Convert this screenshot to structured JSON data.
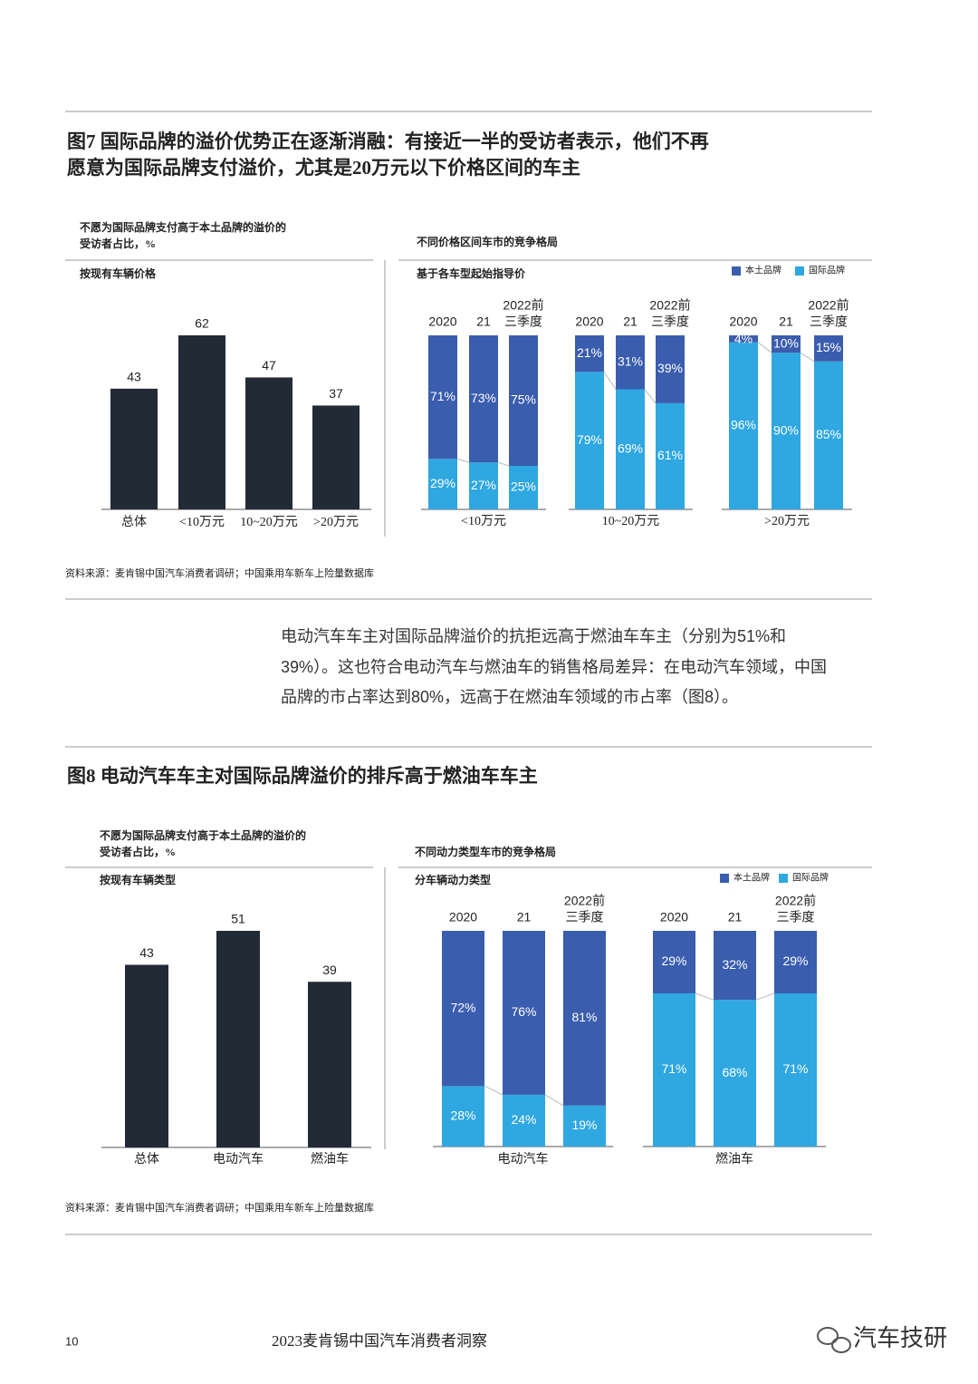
{
  "figure7": {
    "title_lines": [
      "图7 国际品牌的溢价优势正在逐渐消融：有接近一半的受访者表示，他们不再",
      "愿意为国际品牌支付溢价，尤其是20万元以下价格区间的车主"
    ],
    "source": "资料来源：麦肯锡中国汽车消费者调研；中国乘用车新车上险量数据库"
  },
  "paragraph": {
    "lines": [
      "电动汽车车主对国际品牌溢价的抗拒远高于燃油车车主（分别为51%和",
      "39%）。这也符合电动汽车与燃油车的销售格局差异：在电动汽车领域，中国",
      "品牌的市占率达到80%，远高于在燃油车领域的市占率（图8）。"
    ]
  },
  "figure8": {
    "title_lines": [
      "图8 电动汽车车主对国际品牌溢价的排斥高于燃油车车主"
    ],
    "source": "资料来源：麦肯锡中国汽车消费者调研；中国乘用车新车上险量数据库"
  },
  "footer": {
    "page_number": "10",
    "publication": "2023麦肯锡中国汽车消费者洞察",
    "watermark": "汽车技研"
  },
  "chart_data": [
    {
      "type": "bar",
      "title": [
        "不愿为国际品牌支付高于本土品牌的溢价的",
        "受访者占比，%"
      ],
      "subtitle": "按现有车辆价格",
      "categories": [
        "总体",
        "<10万元",
        "10~20万元",
        ">20万元"
      ],
      "values": [
        43,
        62,
        47,
        37
      ],
      "color": "#222a35"
    },
    {
      "type": "stacked_bar",
      "title": [
        "不同价格区间车市的竞争格局"
      ],
      "subtitle": "基于各车型起始指导价",
      "groups": [
        "<10万元",
        "10~20万元",
        ">20万元"
      ],
      "periods": [
        [
          "2020"
        ],
        [
          "21"
        ],
        [
          "2022前",
          "三季度"
        ]
      ],
      "series": [
        {
          "name": "国际品牌",
          "color": "#2fa7e0",
          "values": [
            29,
            27,
            25,
            79,
            69,
            61,
            96,
            90,
            85
          ],
          "value_labels": [
            "29%",
            "27%",
            "25%",
            "79%",
            "69%",
            "61%",
            "96%",
            "90%",
            "85%"
          ]
        },
        {
          "name": "本土品牌",
          "color": "#3a5dae",
          "values": [
            71,
            73,
            75,
            21,
            31,
            39,
            4,
            10,
            15
          ],
          "value_labels": [
            "71%",
            "73%",
            "75%",
            "21%",
            "31%",
            "39%",
            "4%",
            "10%",
            "15%"
          ]
        }
      ]
    },
    {
      "type": "bar",
      "title": [
        "不愿为国际品牌支付高于本土品牌的溢价的",
        "受访者占比，%"
      ],
      "subtitle": "按现有车辆类型",
      "categories": [
        "总体",
        "电动汽车",
        "燃油车"
      ],
      "values": [
        43,
        51,
        39
      ],
      "color": "#222a35"
    },
    {
      "type": "stacked_bar",
      "title": [
        "不同动力类型车市的竞争格局"
      ],
      "subtitle": "分车辆动力类型",
      "groups": [
        "电动汽车",
        "燃油车"
      ],
      "periods": [
        [
          "2020"
        ],
        [
          "21"
        ],
        [
          "2022前",
          "三季度"
        ]
      ],
      "series": [
        {
          "name": "国际品牌",
          "color": "#2fa7e0",
          "values": [
            28,
            24,
            19,
            71,
            68,
            71
          ],
          "value_labels": [
            "28%",
            "24%",
            "19%",
            "71%",
            "68%",
            "71%"
          ]
        },
        {
          "name": "本土品牌",
          "color": "#3a5dae",
          "values": [
            72,
            76,
            81,
            29,
            32,
            29
          ],
          "value_labels": [
            "72%",
            "76%",
            "81%",
            "29%",
            "32%",
            "29%"
          ]
        }
      ]
    }
  ]
}
